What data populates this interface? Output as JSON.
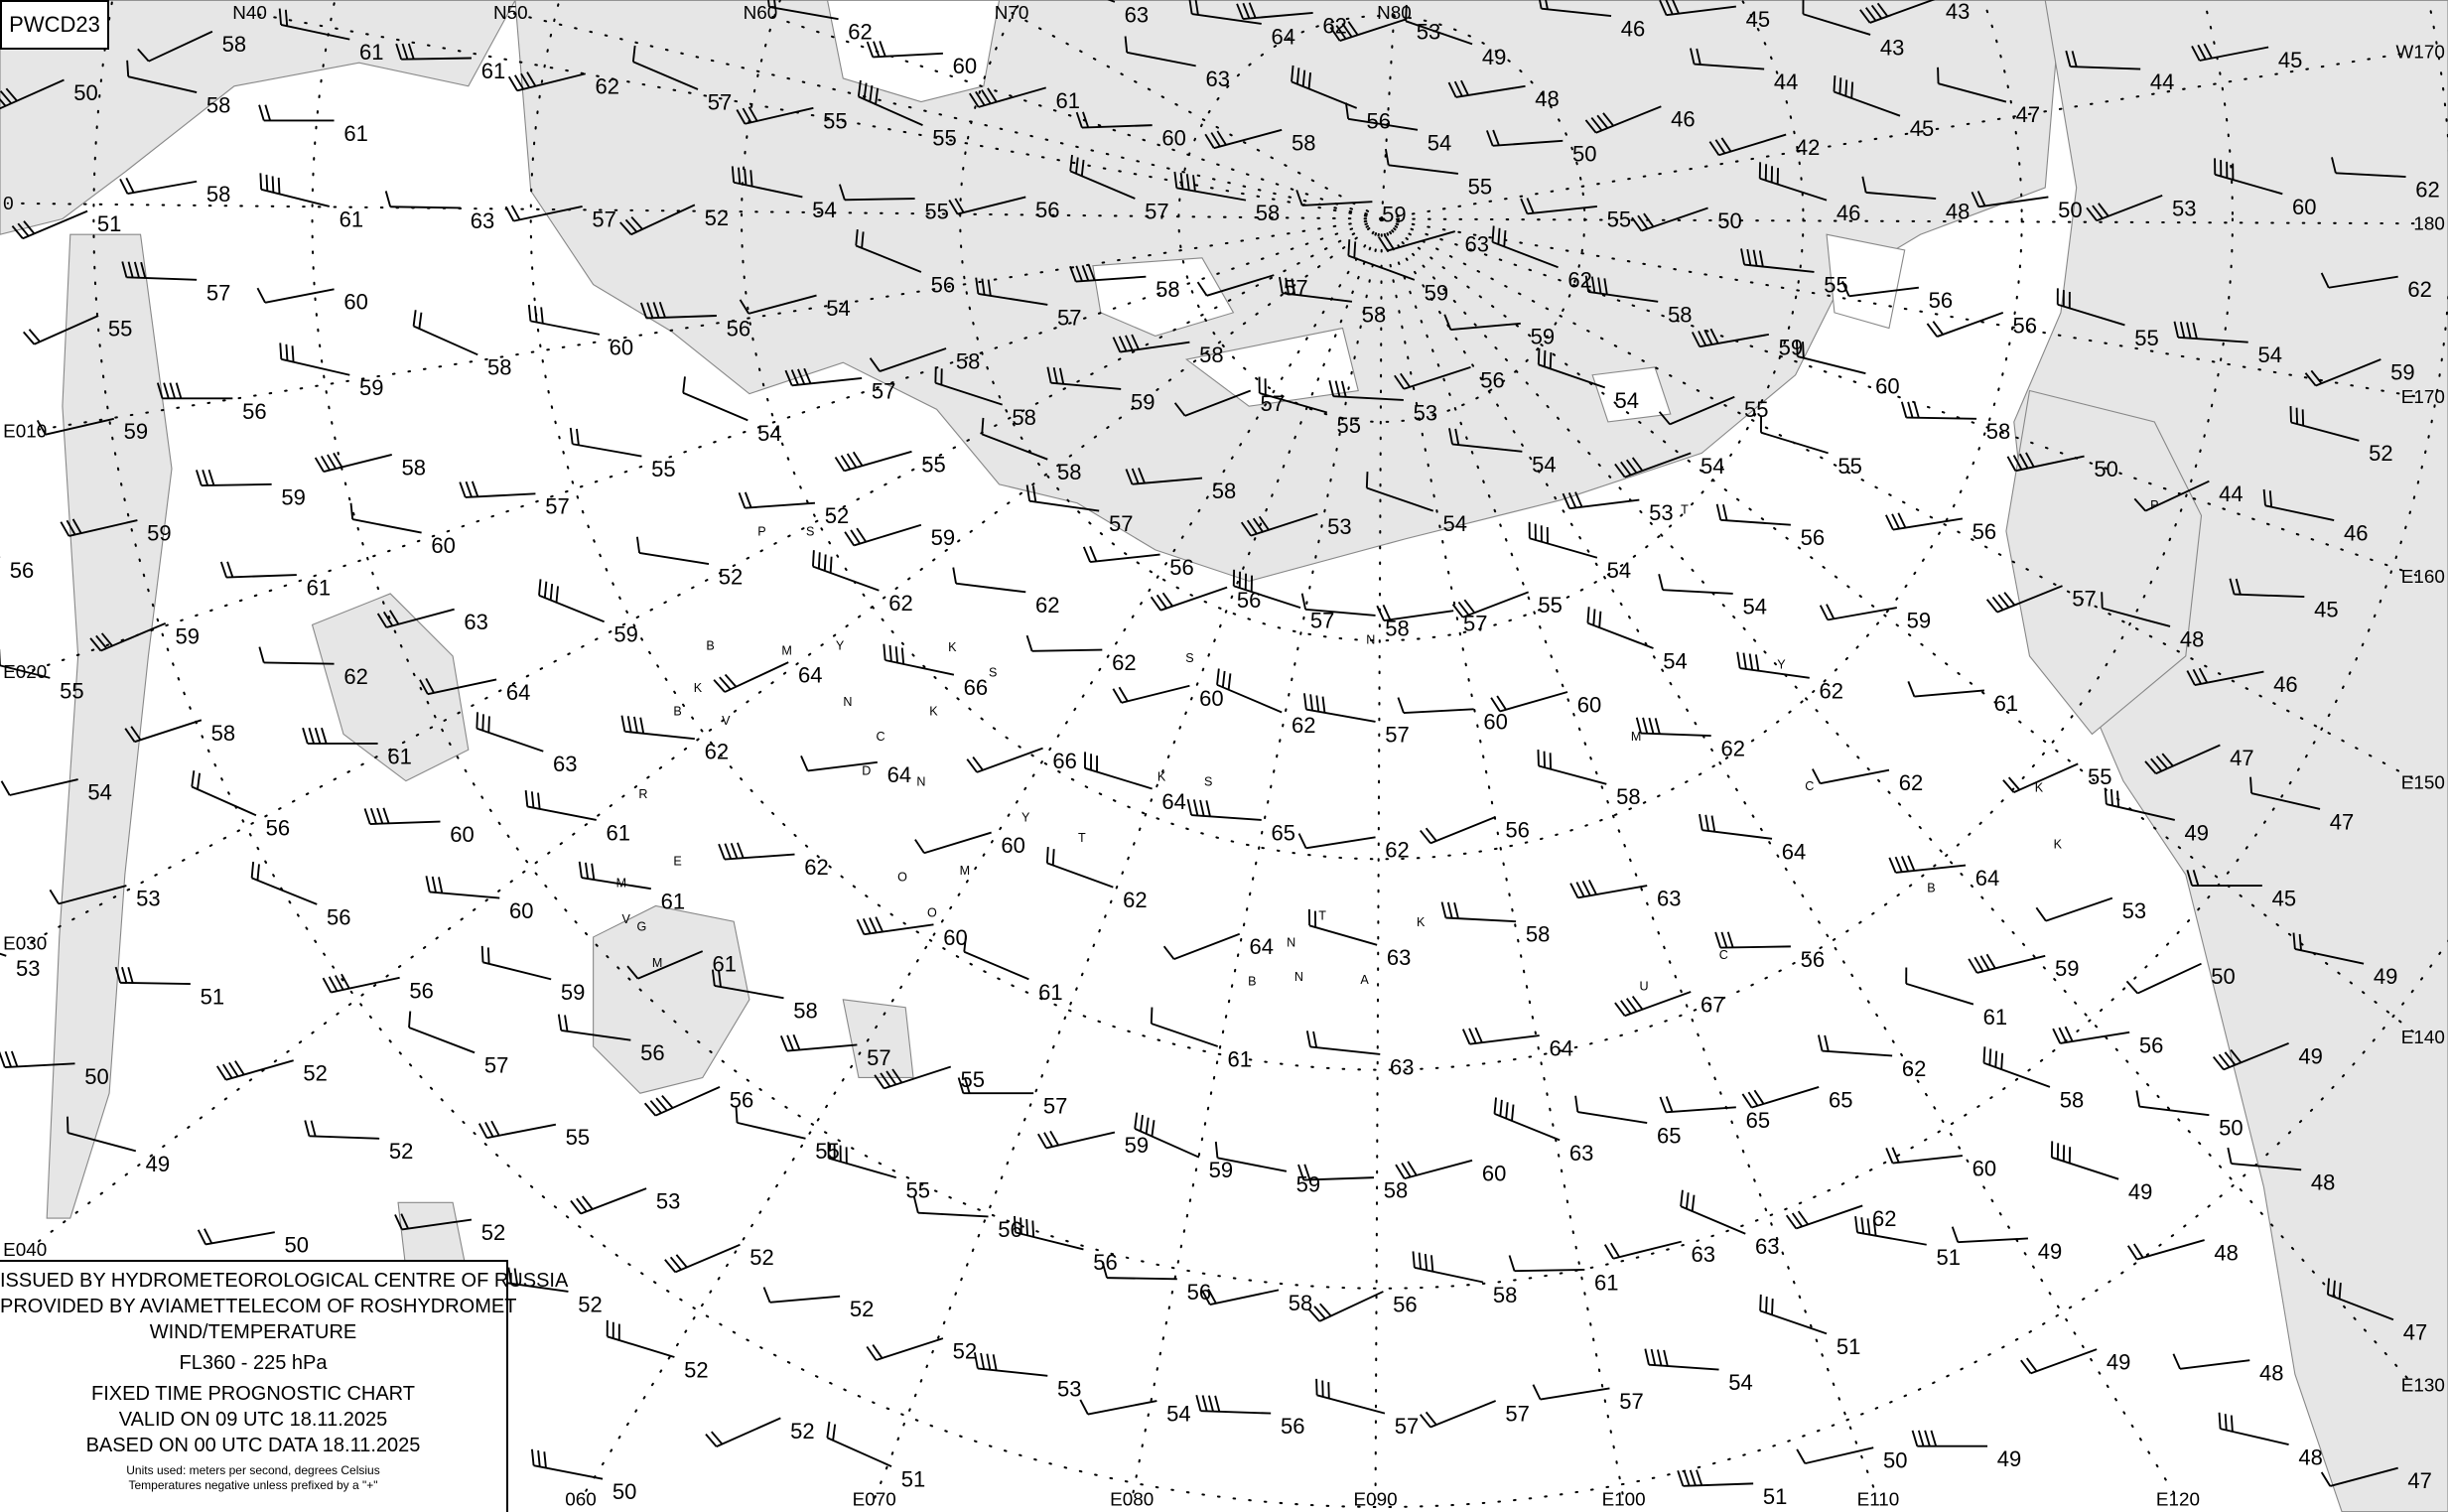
{
  "chart_code": "PWCD23",
  "legend": {
    "line1": "ISSUED BY HYDROMETEOROLOGICAL CENTRE OF RUSSIA",
    "line2": "PROVIDED BY AVIAMETTELECOM OF ROSHYDROMET",
    "line3": "WIND/TEMPERATURE",
    "level": "FL360 - 225 hPa",
    "chart_type": "FIXED TIME PROGNOSTIC CHART",
    "valid": "VALID ON 09 UTC 18.11.2025",
    "based": "BASED ON 00 UTC DATA 18.11.2025",
    "units": "Units used: meters per second, degrees Celsius",
    "note": "Temperatures negative unless prefixed by a \"+\""
  },
  "colors": {
    "sea": "#e6e6e6",
    "land": "#ffffff",
    "coast": "#888888",
    "ink": "#000000"
  },
  "longitude_labels": [
    "N40",
    "N50",
    "N60",
    "N70",
    "N80",
    "W170",
    "180",
    "E170",
    "E160",
    "E150",
    "E140",
    "E130",
    "E120",
    "E110",
    "E100",
    "E090",
    "E080",
    "E070",
    "060",
    "E040",
    "E030",
    "E020",
    "E010",
    "0"
  ],
  "temperatures": [
    "58",
    "61",
    "61",
    "62",
    "57",
    "62",
    "60",
    "61",
    "63",
    "64",
    "62",
    "53",
    "49",
    "46",
    "45",
    "43",
    "43",
    "44",
    "48",
    "46",
    "47",
    "44",
    "45",
    "50",
    "58",
    "61",
    "55",
    "55",
    "63",
    "60",
    "58",
    "56",
    "54",
    "50",
    "42",
    "45",
    "55",
    "55",
    "50",
    "46",
    "48",
    "50",
    "53",
    "60",
    "62",
    "58",
    "51",
    "61",
    "63",
    "57",
    "52",
    "54",
    "55",
    "56",
    "57",
    "58",
    "59",
    "63",
    "62",
    "58",
    "59",
    "56",
    "54",
    "55",
    "56",
    "56",
    "55",
    "54",
    "62",
    "59",
    "52",
    "57",
    "60",
    "55",
    "59",
    "56",
    "59",
    "58",
    "60",
    "56",
    "54",
    "56",
    "57",
    "58",
    "57",
    "59",
    "58",
    "57",
    "58",
    "58",
    "59",
    "58",
    "57",
    "55",
    "53",
    "59",
    "55",
    "60",
    "58",
    "50",
    "44",
    "46",
    "59",
    "58",
    "54",
    "55",
    "57",
    "55",
    "58",
    "57",
    "58",
    "53",
    "54",
    "54",
    "53",
    "54",
    "55",
    "56",
    "56",
    "57",
    "48",
    "45",
    "46",
    "47",
    "47",
    "45",
    "59",
    "56",
    "60",
    "61",
    "63",
    "59",
    "52",
    "52",
    "59",
    "62",
    "62",
    "56",
    "56",
    "57",
    "58",
    "57",
    "55",
    "54",
    "54",
    "59",
    "59",
    "55",
    "62",
    "64",
    "64",
    "66",
    "62",
    "60",
    "62",
    "57",
    "60",
    "60",
    "54",
    "62",
    "61",
    "58",
    "63",
    "62",
    "64",
    "66",
    "64",
    "65",
    "62",
    "56",
    "58",
    "62",
    "62",
    "55",
    "49",
    "61",
    "54",
    "56",
    "61",
    "60",
    "53",
    "56",
    "61",
    "62",
    "60",
    "62",
    "64",
    "64",
    "53",
    "53",
    "60",
    "60",
    "64",
    "63",
    "58",
    "63",
    "61",
    "59",
    "51",
    "56",
    "50",
    "49",
    "56",
    "59",
    "61",
    "58",
    "50",
    "52",
    "57",
    "56",
    "57",
    "55",
    "61",
    "63",
    "64",
    "67",
    "61",
    "62",
    "56",
    "49",
    "49",
    "52",
    "55",
    "56",
    "55",
    "57",
    "59",
    "59",
    "59",
    "58",
    "60",
    "63",
    "65",
    "65",
    "65",
    "58",
    "50",
    "60",
    "62",
    "49",
    "48",
    "52",
    "53",
    "55",
    "56",
    "50",
    "52",
    "56",
    "56",
    "58",
    "56",
    "58",
    "61",
    "63",
    "63",
    "51",
    "49",
    "48",
    "47",
    "52",
    "52",
    "52",
    "51",
    "53",
    "48",
    "49",
    "52",
    "54",
    "57",
    "57",
    "57",
    "56",
    "54",
    "52",
    "48",
    "49",
    "50",
    "51",
    "50",
    "51",
    "47"
  ],
  "station_markers": [
    "P",
    "S",
    "B",
    "M",
    "Y",
    "K",
    "B",
    "V",
    "N",
    "C",
    "K",
    "S",
    "K",
    "S",
    "Y",
    "M",
    "C",
    "K",
    "K",
    "T",
    "O",
    "M",
    "O",
    "T",
    "K",
    "N",
    "B",
    "N",
    "A",
    "C",
    "U",
    "P",
    "B",
    "K",
    "S",
    "D",
    "N",
    "T",
    "N",
    "Y",
    "E",
    "M",
    "G",
    "V",
    "R",
    "M"
  ]
}
